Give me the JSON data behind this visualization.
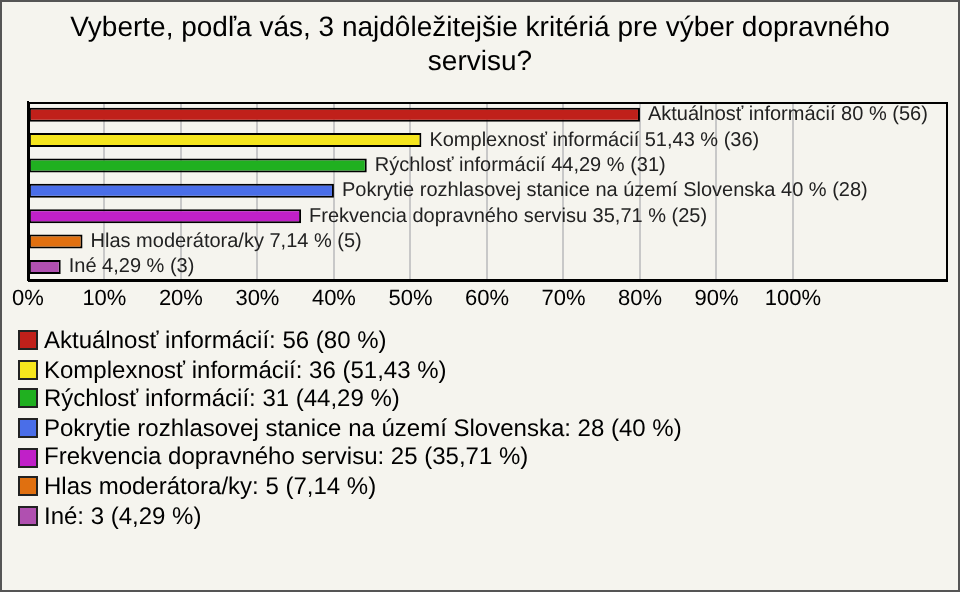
{
  "chart_data": {
    "type": "bar",
    "orientation": "horizontal",
    "title": "Vyberte, podľa vás, 3 najdôležitejšie kritériá pre výber dopravného servisu?",
    "categories": [
      null,
      null,
      null,
      null,
      null,
      null,
      null
    ],
    "series": [
      {
        "name": "Aktuálnosť informácií: 56 (80 %)",
        "color": "#c0201a",
        "values": [
          80,
          null,
          null,
          null,
          null,
          null,
          null
        ],
        "value_labels": [
          "Aktuálnosť informácií 80 % (56)",
          null,
          null,
          null,
          null,
          null,
          null
        ]
      },
      {
        "name": "Komplexnosť informácií: 36 (51,43 %)",
        "color": "#f5e51d",
        "values": [
          null,
          51.43,
          null,
          null,
          null,
          null,
          null
        ],
        "value_labels": [
          null,
          "Komplexnosť informácií 51,43 % (36)",
          null,
          null,
          null,
          null,
          null
        ]
      },
      {
        "name": "Rýchlosť informácií: 31 (44,29 %)",
        "color": "#20b020",
        "values": [
          null,
          null,
          44.29,
          null,
          null,
          null,
          null
        ],
        "value_labels": [
          null,
          null,
          "Rýchlosť informácií 44,29 % (31)",
          null,
          null,
          null,
          null
        ]
      },
      {
        "name": "Pokrytie rozhlasovej stanice na území Slovenska: 28 (40 %)",
        "color": "#4a6ee8",
        "values": [
          null,
          null,
          null,
          40,
          null,
          null,
          null
        ],
        "value_labels": [
          null,
          null,
          null,
          "Pokrytie rozhlasovej stanice na území Slovenska 40 % (28)",
          null,
          null,
          null
        ]
      },
      {
        "name": "Frekvencia dopravného servisu: 25 (35,71 %)",
        "color": "#c020c8",
        "values": [
          null,
          null,
          null,
          null,
          35.71,
          null,
          null
        ],
        "value_labels": [
          null,
          null,
          null,
          null,
          "Frekvencia dopravného servisu 35,71 % (25)",
          null,
          null
        ]
      },
      {
        "name": "Hlas moderátora/ky: 5 (7,14 %)",
        "color": "#e07010",
        "values": [
          null,
          null,
          null,
          null,
          null,
          7.14,
          null
        ],
        "value_labels": [
          null,
          null,
          null,
          null,
          null,
          "Hlas moderátora/ky 7,14 % (5)",
          null
        ]
      },
      {
        "name": "Iné: 3 (4,29 %)",
        "color": "#b050b0",
        "values": [
          null,
          null,
          null,
          null,
          null,
          null,
          4.29
        ],
        "value_labels": [
          null,
          null,
          null,
          null,
          null,
          null,
          "Iné 4,29 % (3)"
        ]
      }
    ],
    "xlim": [
      0,
      120
    ],
    "xticks": [
      {
        "value": 0,
        "label": "0%"
      },
      {
        "value": 10,
        "label": "10%"
      },
      {
        "value": 20,
        "label": "20%"
      },
      {
        "value": 30,
        "label": "30%"
      },
      {
        "value": 40,
        "label": "40%"
      },
      {
        "value": 50,
        "label": "50%"
      },
      {
        "value": 60,
        "label": "60%"
      },
      {
        "value": 70,
        "label": "70%"
      },
      {
        "value": 80,
        "label": "80%"
      },
      {
        "value": 90,
        "label": "90%"
      },
      {
        "value": 100,
        "label": "100%"
      }
    ],
    "grid": "x",
    "legend": "bottom",
    "tick_labels": "x"
  }
}
